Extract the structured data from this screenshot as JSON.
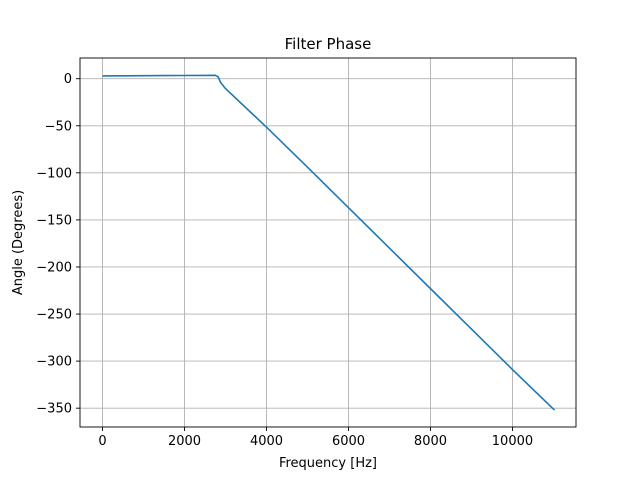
{
  "chart_data": {
    "type": "line",
    "title": "Filter Phase",
    "xlabel": "Frequency [Hz]",
    "ylabel": "Angle (Degrees)",
    "xlim": [
      -550,
      11550
    ],
    "ylim": [
      -370,
      22
    ],
    "xticks": [
      0,
      2000,
      4000,
      6000,
      8000,
      10000
    ],
    "xtick_labels": [
      "0",
      "2000",
      "4000",
      "6000",
      "8000",
      "10000"
    ],
    "yticks": [
      0,
      -50,
      -100,
      -150,
      -200,
      -250,
      -300,
      -350
    ],
    "ytick_labels": [
      "0",
      "−50",
      "−100",
      "−150",
      "−200",
      "−250",
      "−300",
      "−350"
    ],
    "grid": true,
    "series": [
      {
        "color": "#1f77b4",
        "x": [
          0,
          500,
          1000,
          1500,
          2000,
          2500,
          2750,
          2820,
          2880,
          3000,
          4000,
          5000,
          6000,
          7000,
          8000,
          9000,
          10000,
          11025
        ],
        "y": [
          3.0,
          3.1,
          3.2,
          3.3,
          3.4,
          3.5,
          3.6,
          2.0,
          -4.0,
          -10.5,
          -51.5,
          -94.0,
          -137.0,
          -180.0,
          -223.0,
          -266.0,
          -309.0,
          -352.0
        ]
      }
    ]
  }
}
